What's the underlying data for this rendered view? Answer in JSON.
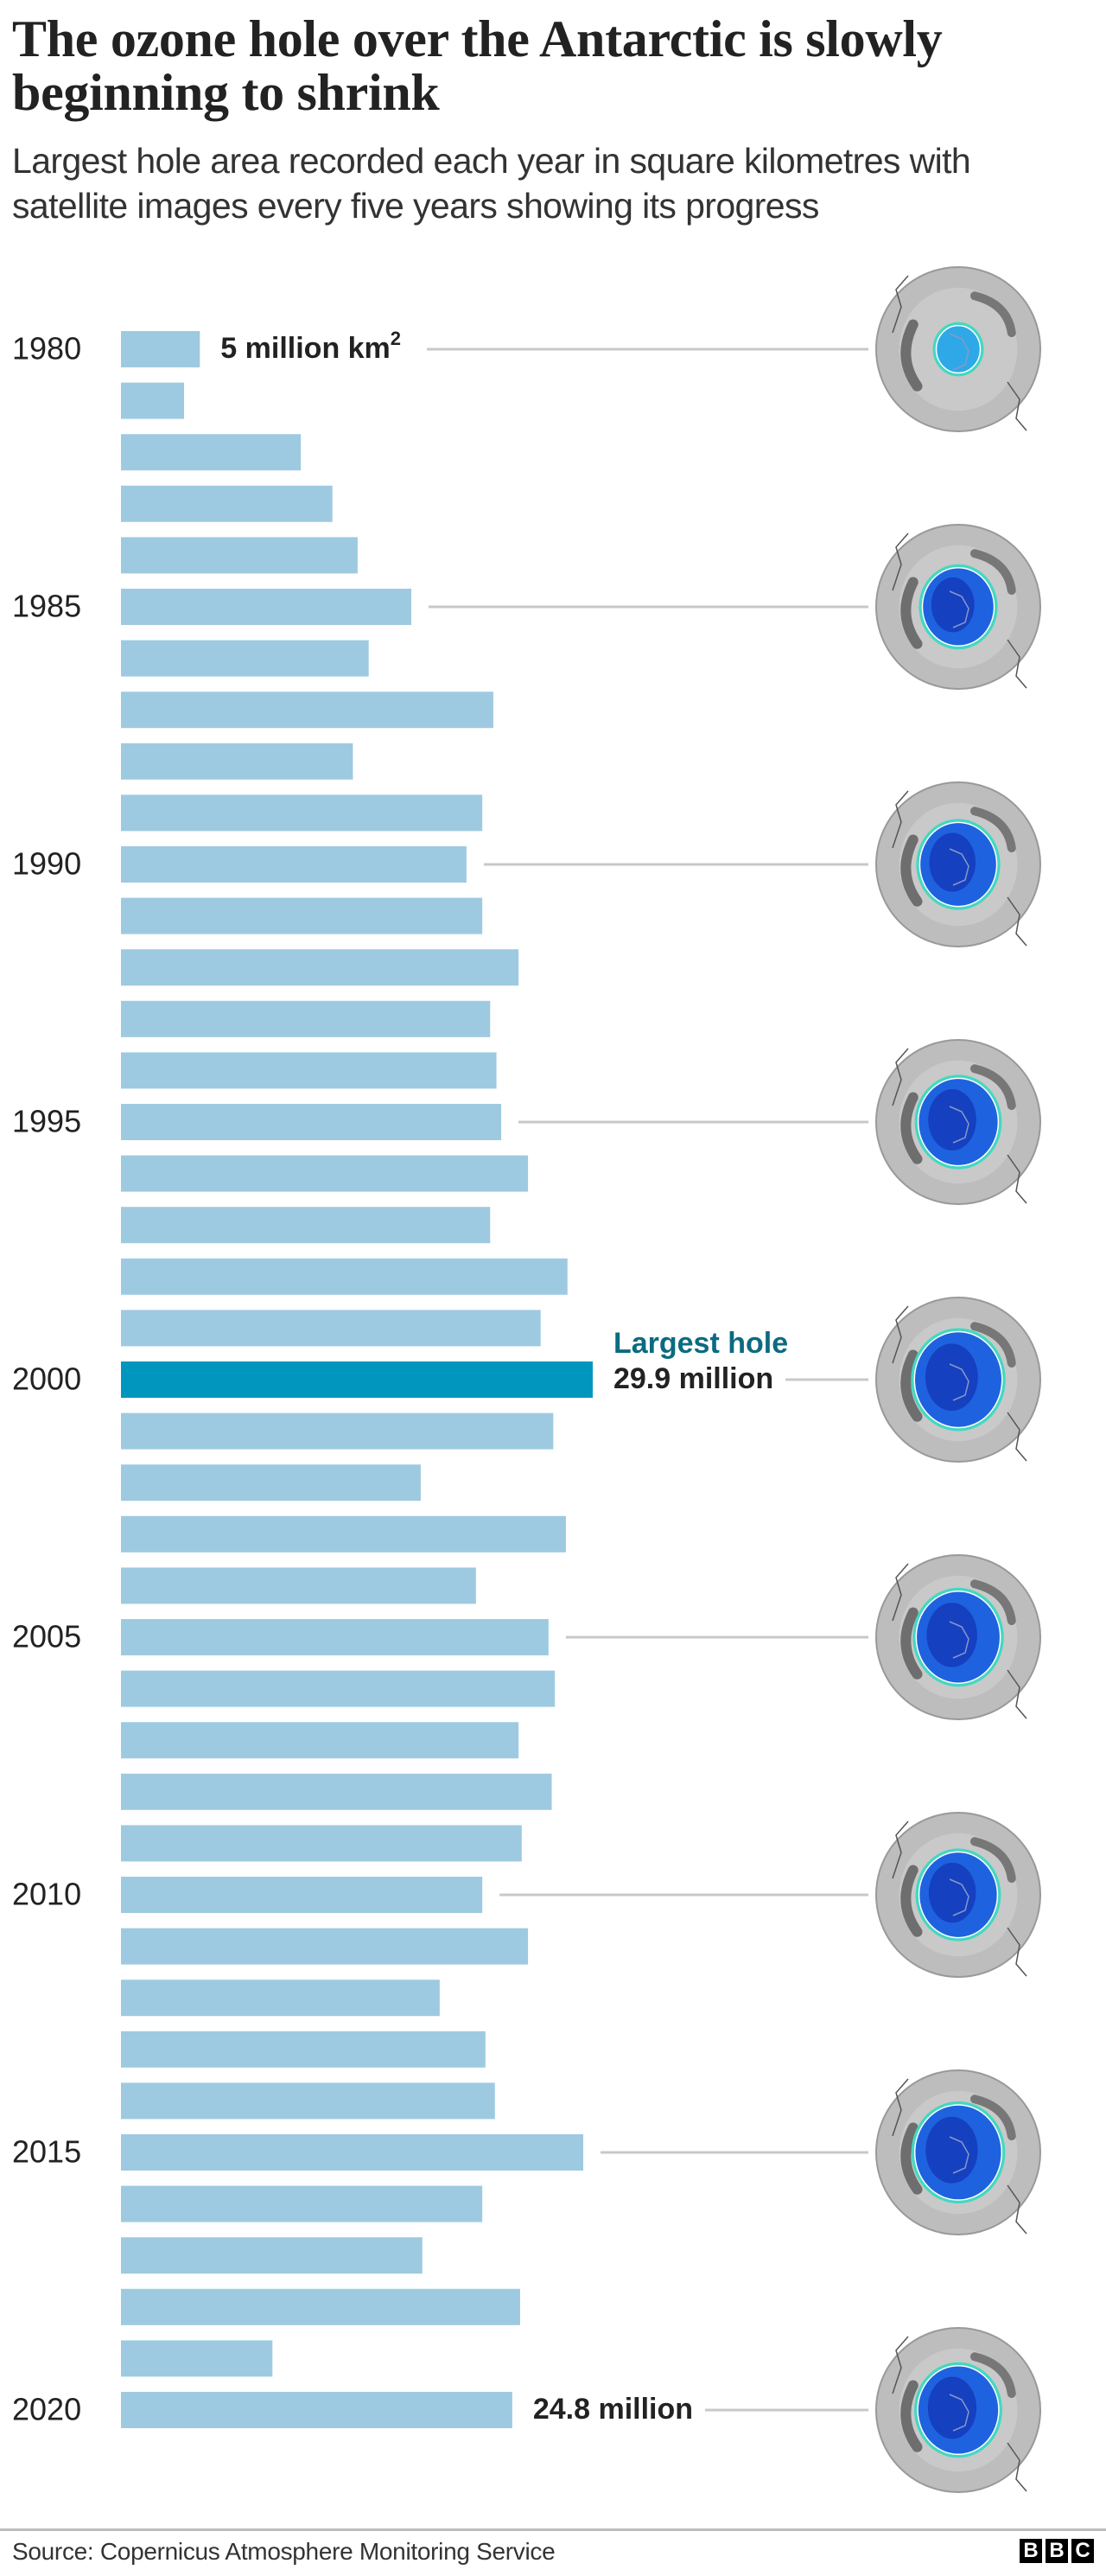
{
  "header": {
    "title": "The ozone hole over the Antarctic is slowly beginning to shrink",
    "subtitle": "Largest hole area recorded each year in square kilometres with satellite images every five years showing its progress"
  },
  "chart_data": {
    "type": "bar",
    "orientation": "horizontal",
    "title": "The ozone hole over the Antarctic is slowly beginning to shrink",
    "subtitle": "Largest hole area recorded each year in square kilometres with satellite images every five years showing its progress",
    "unit": "million km²",
    "categories": [
      1980,
      1981,
      1982,
      1983,
      1984,
      1985,
      1986,
      1987,
      1988,
      1989,
      1990,
      1991,
      1992,
      1993,
      1994,
      1995,
      1996,
      1997,
      1998,
      1999,
      2000,
      2001,
      2002,
      2003,
      2004,
      2005,
      2006,
      2007,
      2008,
      2009,
      2010,
      2011,
      2012,
      2013,
      2014,
      2015,
      2016,
      2017,
      2018,
      2019,
      2020
    ],
    "values": [
      5.0,
      4.0,
      11.4,
      13.4,
      15.0,
      18.4,
      15.7,
      23.6,
      14.7,
      22.9,
      21.9,
      22.9,
      25.2,
      23.4,
      23.8,
      24.1,
      25.8,
      23.4,
      28.3,
      26.6,
      29.9,
      27.4,
      19.0,
      28.2,
      22.5,
      27.1,
      27.5,
      25.2,
      27.3,
      25.4,
      22.9,
      25.8,
      20.2,
      23.1,
      23.7,
      29.3,
      22.9,
      19.1,
      25.3,
      9.6,
      24.8
    ],
    "labeled_years": [
      1980,
      1985,
      1990,
      1995,
      2000,
      2005,
      2010,
      2015,
      2020
    ],
    "highlight_year": 2000,
    "xlim": [
      0,
      30
    ],
    "grid": false,
    "annotations": [
      {
        "year": 1980,
        "text": "5 million km",
        "sup": "2"
      },
      {
        "year": 2000,
        "heading": "Largest hole",
        "text": "29.9 million"
      },
      {
        "year": 2020,
        "text": "24.8 million"
      }
    ],
    "satellite_image_years": [
      1980,
      1985,
      1990,
      1995,
      2000,
      2005,
      2010,
      2015,
      2020
    ],
    "colors": {
      "bar": "#9ecae1",
      "highlight": "#0096bd",
      "heading": "#0b6b80",
      "connector": "#c8c8c8"
    }
  },
  "footer": {
    "source": "Source: Copernicus Atmosphere Monitoring Service",
    "logo": [
      "B",
      "B",
      "C"
    ]
  }
}
